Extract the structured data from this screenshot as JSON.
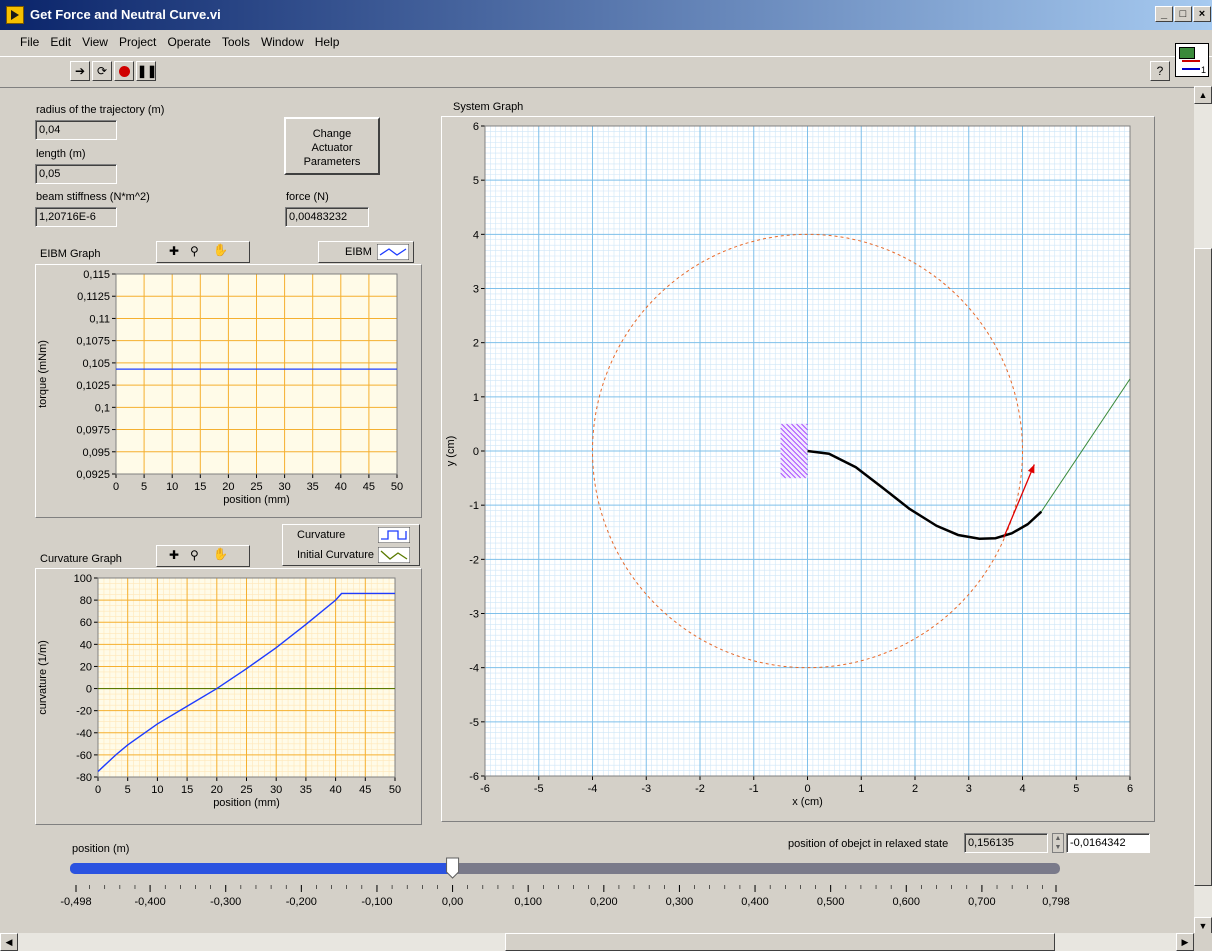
{
  "window": {
    "title": "Get Force and Neutral Curve.vi",
    "controls": [
      "_",
      "□",
      "×"
    ]
  },
  "menu": [
    "File",
    "Edit",
    "View",
    "Project",
    "Operate",
    "Tools",
    "Window",
    "Help"
  ],
  "toolbar": {
    "icons": [
      "run-arrow-icon",
      "run-continuous-icon",
      "abort-icon",
      "pause-icon"
    ],
    "help": "?",
    "vi_icon_number": "1"
  },
  "inputs": {
    "radius_label": "radius of the trajectory (m)",
    "radius_value": "0,04",
    "length_label": "length (m)",
    "length_value": "0,05",
    "stiffness_label": "beam stiffness (N*m^2)",
    "stiffness_value": "1,20716E-6",
    "force_label": "force (N)",
    "force_value": "0,00483232"
  },
  "change_button": {
    "line1": "Change",
    "line2": "Actuator",
    "line3": "Parameters"
  },
  "eibm_graph": {
    "title": "EIBM Graph",
    "legend": "EIBM",
    "xlabel": "position (mm)",
    "ylabel": "torque (mNm)",
    "xticks": [
      "0",
      "5",
      "10",
      "15",
      "20",
      "25",
      "30",
      "35",
      "40",
      "45",
      "50"
    ],
    "yticks": [
      "0,115",
      "0,1125",
      "0,11",
      "0,1075",
      "0,105",
      "0,1025",
      "0,1",
      "0,0975",
      "0,095",
      "0,0925"
    ]
  },
  "curvature_graph": {
    "title": "Curvature Graph",
    "legend1": "Curvature",
    "legend2": "Initial Curvature",
    "xlabel": "position (mm)",
    "ylabel": "curvature (1/m)",
    "xticks": [
      "0",
      "5",
      "10",
      "15",
      "20",
      "25",
      "30",
      "35",
      "40",
      "45",
      "50"
    ],
    "yticks": [
      "100",
      "80",
      "60",
      "40",
      "20",
      "0",
      "-20",
      "-40",
      "-60",
      "-80"
    ]
  },
  "system_graph": {
    "title": "System Graph",
    "xlabel": "x (cm)",
    "ylabel": "y (cm)",
    "xticks": [
      "-6",
      "-5",
      "-4",
      "-3",
      "-2",
      "-1",
      "0",
      "1",
      "2",
      "3",
      "4",
      "5",
      "6"
    ],
    "yticks": [
      "6",
      "5",
      "4",
      "3",
      "2",
      "1",
      "0",
      "-1",
      "-2",
      "-3",
      "-4",
      "-5",
      "-6"
    ]
  },
  "relaxed": {
    "label": "position of obejct in relaxed state",
    "value1": "0,156135",
    "value2": "-0,0164342"
  },
  "slider": {
    "label": "position (m)",
    "ticks": [
      "-0,498",
      "-0,400",
      "-0,300",
      "-0,200",
      "-0,100",
      "0,00",
      "0,100",
      "0,200",
      "0,300",
      "0,400",
      "0,500",
      "0,600",
      "0,700",
      "0,798"
    ],
    "value": 0.0,
    "min": -0.498,
    "max": 0.798
  },
  "chart_data": [
    {
      "type": "line",
      "title": "EIBM Graph",
      "xlabel": "position (mm)",
      "ylabel": "torque (mNm)",
      "xlim": [
        0,
        50
      ],
      "ylim": [
        0.0925,
        0.115
      ],
      "grid": true,
      "series": [
        {
          "name": "EIBM",
          "x": [
            0,
            50
          ],
          "y": [
            0.1043,
            0.1043
          ]
        }
      ]
    },
    {
      "type": "line",
      "title": "Curvature Graph",
      "xlabel": "position (mm)",
      "ylabel": "curvature (1/m)",
      "xlim": [
        0,
        50
      ],
      "ylim": [
        -80,
        100
      ],
      "grid": true,
      "series": [
        {
          "name": "Curvature",
          "x": [
            0,
            1,
            3,
            5,
            10,
            15,
            20,
            25,
            30,
            35,
            40,
            41,
            50
          ],
          "y": [
            -75,
            -70,
            -60,
            -51,
            -32,
            -16,
            0,
            18,
            37,
            58,
            80,
            86,
            86
          ]
        },
        {
          "name": "Initial Curvature",
          "x": [
            0,
            50
          ],
          "y": [
            0,
            0
          ]
        }
      ]
    },
    {
      "type": "line",
      "title": "System Graph",
      "xlabel": "x (cm)",
      "ylabel": "y (cm)",
      "xlim": [
        -6,
        6
      ],
      "ylim": [
        -6,
        6
      ],
      "grid": true,
      "series": [
        {
          "name": "beam",
          "x": [
            0,
            0.4,
            0.9,
            1.4,
            1.9,
            2.4,
            2.8,
            3.2,
            3.5,
            3.8,
            4.1,
            4.35
          ],
          "y": [
            0,
            -0.05,
            -0.3,
            -0.68,
            -1.07,
            -1.38,
            -1.55,
            -1.62,
            -1.61,
            -1.52,
            -1.35,
            -1.12
          ]
        },
        {
          "name": "tangent",
          "x": [
            4.35,
            6
          ],
          "y": [
            -1.12,
            1.33
          ]
        },
        {
          "name": "force",
          "x": [
            3.65,
            4.22
          ],
          "y": [
            -1.6,
            -0.25
          ]
        },
        {
          "name": "trajectory",
          "circle_radius": 4
        }
      ]
    }
  ]
}
